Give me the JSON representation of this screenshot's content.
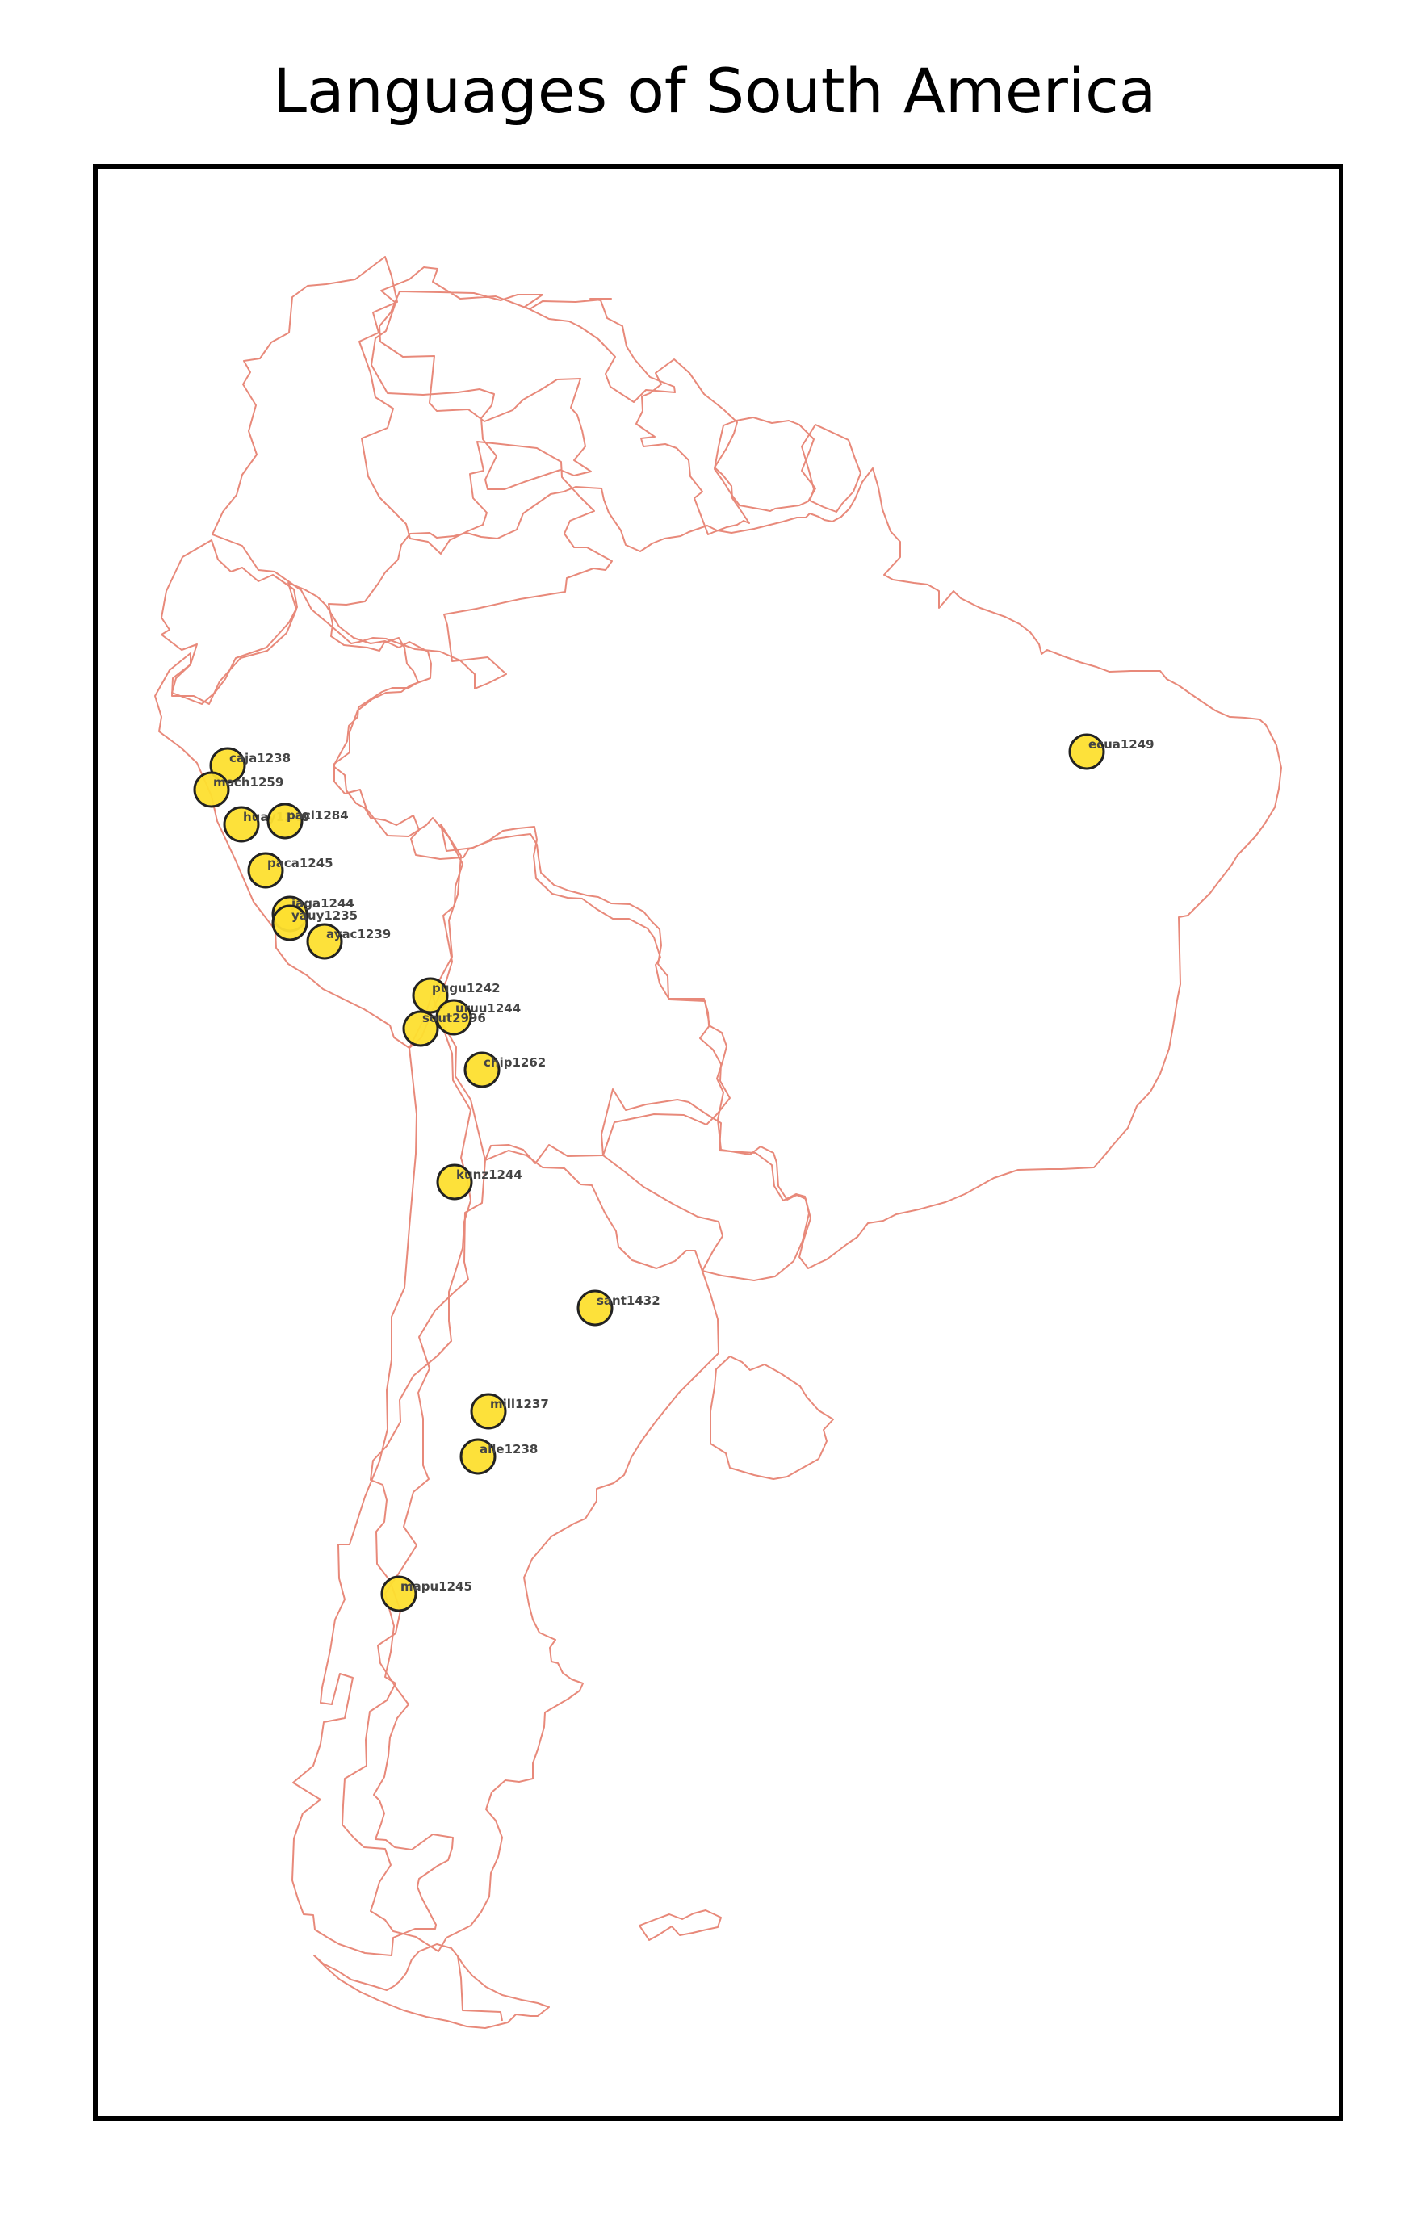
{
  "title": "Languages of South America",
  "colors": {
    "border": "#e8897a",
    "marker_fill": "#fddf2f",
    "marker_stroke": "#222222",
    "label": "#444444",
    "frame": "#000000"
  },
  "languages": [
    {
      "code": "caja1238"
    },
    {
      "code": "moch1259"
    },
    {
      "code": "huay1240"
    },
    {
      "code": "pacl1284"
    },
    {
      "code": "paca1245"
    },
    {
      "code": "jaga1244"
    },
    {
      "code": "yauy1235"
    },
    {
      "code": "ayac1239"
    },
    {
      "code": "pugu1242"
    },
    {
      "code": "uruu1244"
    },
    {
      "code": "sout2996"
    },
    {
      "code": "chip1262"
    },
    {
      "code": "kunz1244"
    },
    {
      "code": "sant1432"
    },
    {
      "code": "mill1237"
    },
    {
      "code": "alle1238"
    },
    {
      "code": "mapu1245"
    },
    {
      "code": "ecua1249"
    }
  ]
}
